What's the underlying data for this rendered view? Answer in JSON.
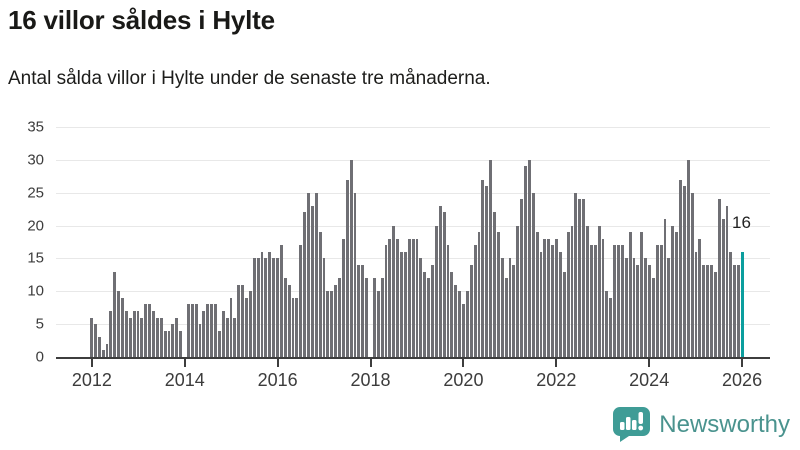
{
  "header": {
    "title": "16 villor såldes i Hylte",
    "subtitle": "Antal sålda villor i Hylte under de senaste tre månaderna."
  },
  "chart_data": {
    "type": "bar",
    "title": "16 villor såldes i Hylte",
    "subtitle": "Antal sålda villor i Hylte under de senaste tre månaderna.",
    "x_start_year": 2012,
    "x_months_per_bar": 1,
    "values": [
      6,
      5,
      3,
      1,
      2,
      7,
      13,
      10,
      9,
      7,
      6,
      7,
      7,
      6,
      8,
      8,
      7,
      6,
      6,
      4,
      4,
      5,
      6,
      4,
      0,
      8,
      8,
      8,
      5,
      7,
      8,
      8,
      8,
      4,
      7,
      6,
      9,
      6,
      11,
      11,
      9,
      10,
      15,
      15,
      16,
      15,
      16,
      15,
      15,
      17,
      12,
      11,
      9,
      9,
      17,
      22,
      25,
      23,
      25,
      19,
      15,
      10,
      10,
      11,
      12,
      18,
      27,
      30,
      25,
      14,
      14,
      12,
      0,
      12,
      10,
      12,
      17,
      18,
      20,
      18,
      16,
      16,
      18,
      18,
      18,
      15,
      13,
      12,
      14,
      20,
      23,
      22,
      17,
      13,
      11,
      10,
      8,
      10,
      14,
      17,
      19,
      27,
      26,
      30,
      22,
      19,
      15,
      12,
      15,
      14,
      20,
      24,
      29,
      30,
      25,
      19,
      16,
      18,
      18,
      17,
      18,
      16,
      13,
      19,
      20,
      25,
      24,
      24,
      20,
      17,
      17,
      20,
      18,
      10,
      9,
      17,
      17,
      17,
      15,
      19,
      15,
      14,
      19,
      15,
      14,
      12,
      17,
      17,
      21,
      15,
      20,
      19,
      27,
      26,
      30,
      25,
      16,
      18,
      14,
      14,
      14,
      13,
      24,
      21,
      23,
      16,
      14,
      14,
      16
    ],
    "highlight_last": true,
    "highlight_label": "16",
    "ylim": [
      0,
      35
    ],
    "yticks": [
      0,
      5,
      10,
      15,
      20,
      25,
      30,
      35
    ],
    "xtick_years": [
      "2012",
      "2014",
      "2016",
      "2018",
      "2020",
      "2022",
      "2024",
      "2026"
    ],
    "grid": "on",
    "legend": "none",
    "bar_color": "#6f6f74",
    "highlight_color": "#0b9e9e",
    "axis_color": "#3d3d3d",
    "gridline_color": "#e8e8e8"
  },
  "branding": {
    "name": "Newsworthy",
    "text_color": "#4a938e",
    "icon_color": "#3f9c96"
  }
}
